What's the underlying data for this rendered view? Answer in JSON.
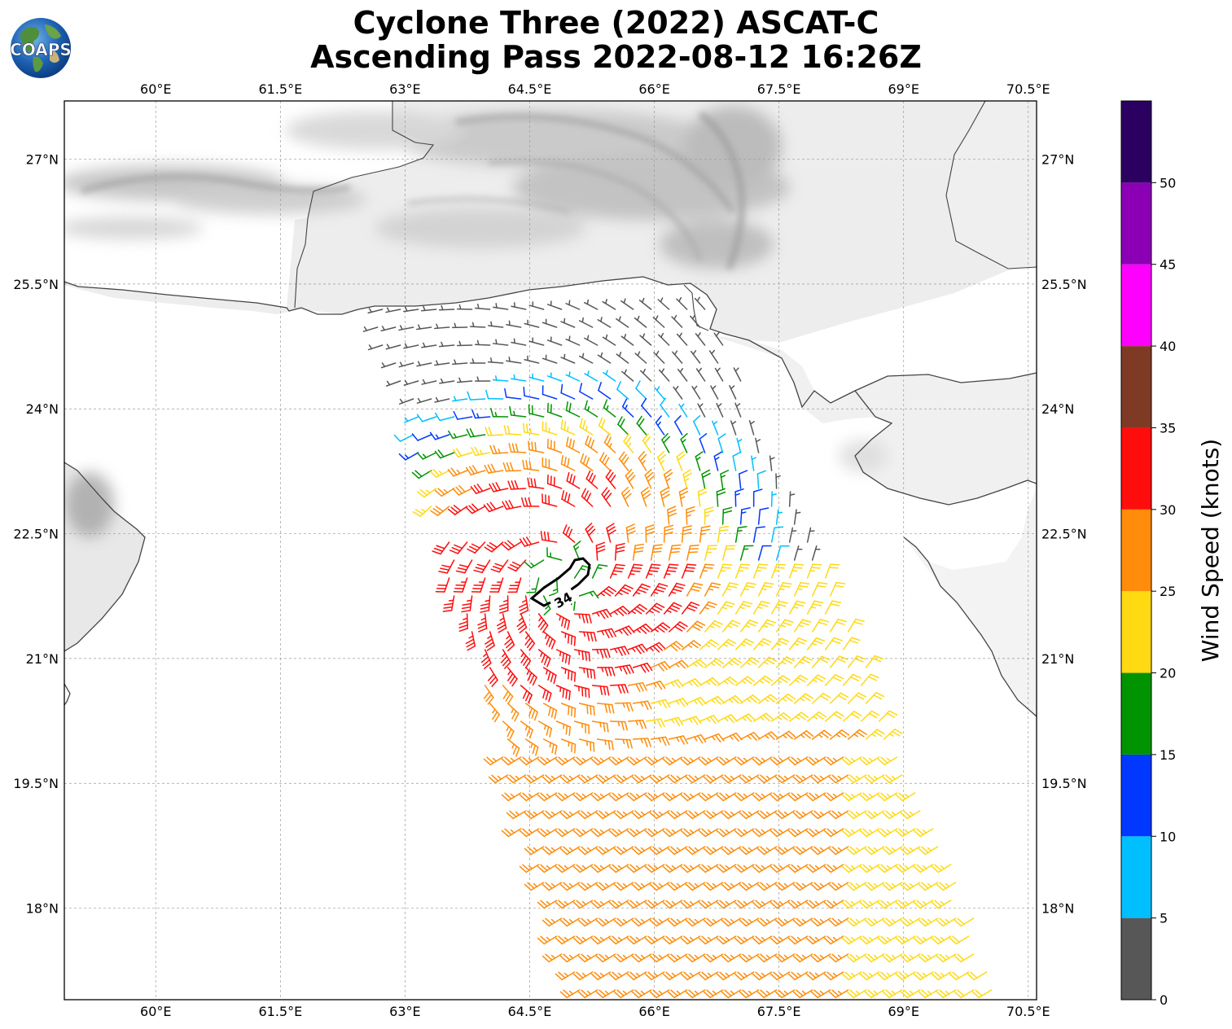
{
  "title": {
    "line1": "Cyclone Three (2022) ASCAT-C",
    "line2": "Ascending Pass 2022-08-12 16:26Z"
  },
  "logo": {
    "text": "COAPS"
  },
  "map": {
    "lon_range": [
      58.9,
      70.6
    ],
    "lat_range": [
      16.9,
      27.7
    ],
    "lon_ticks": [
      60.0,
      61.5,
      63.0,
      64.5,
      66.0,
      67.5,
      69.0,
      70.5
    ],
    "lon_tick_labels": [
      "60°E",
      "61.5°E",
      "63°E",
      "64.5°E",
      "66°E",
      "67.5°E",
      "69°E",
      "70.5°E"
    ],
    "lat_ticks": [
      18.0,
      19.5,
      21.0,
      22.5,
      24.0,
      25.5,
      27.0
    ],
    "lat_tick_labels": [
      "18°N",
      "19.5°N",
      "21°N",
      "22.5°N",
      "24°N",
      "25.5°N",
      "27°N"
    ],
    "gridlines": true,
    "cyclone_center": {
      "lon": 64.9,
      "lat": 22.0
    },
    "contour_label": "34"
  },
  "colorbar": {
    "label": "Wind Speed (knots)",
    "ticks": [
      "0",
      "5",
      "10",
      "15",
      "20",
      "25",
      "30",
      "35",
      "40",
      "45",
      "50"
    ],
    "bins": [
      {
        "min": 0,
        "max": 5,
        "color": "#575757"
      },
      {
        "min": 5,
        "max": 10,
        "color": "#00bfff"
      },
      {
        "min": 10,
        "max": 15,
        "color": "#0038ff"
      },
      {
        "min": 15,
        "max": 20,
        "color": "#009400"
      },
      {
        "min": 20,
        "max": 25,
        "color": "#ffd912"
      },
      {
        "min": 25,
        "max": 30,
        "color": "#ff8c0a"
      },
      {
        "min": 30,
        "max": 35,
        "color": "#ff0d0d"
      },
      {
        "min": 35,
        "max": 40,
        "color": "#7f3a26"
      },
      {
        "min": 40,
        "max": 45,
        "color": "#ff00ff"
      },
      {
        "min": 45,
        "max": 50,
        "color": "#8c00b5"
      },
      {
        "min": 50,
        "max": 55,
        "color": "#2b0060"
      }
    ]
  }
}
